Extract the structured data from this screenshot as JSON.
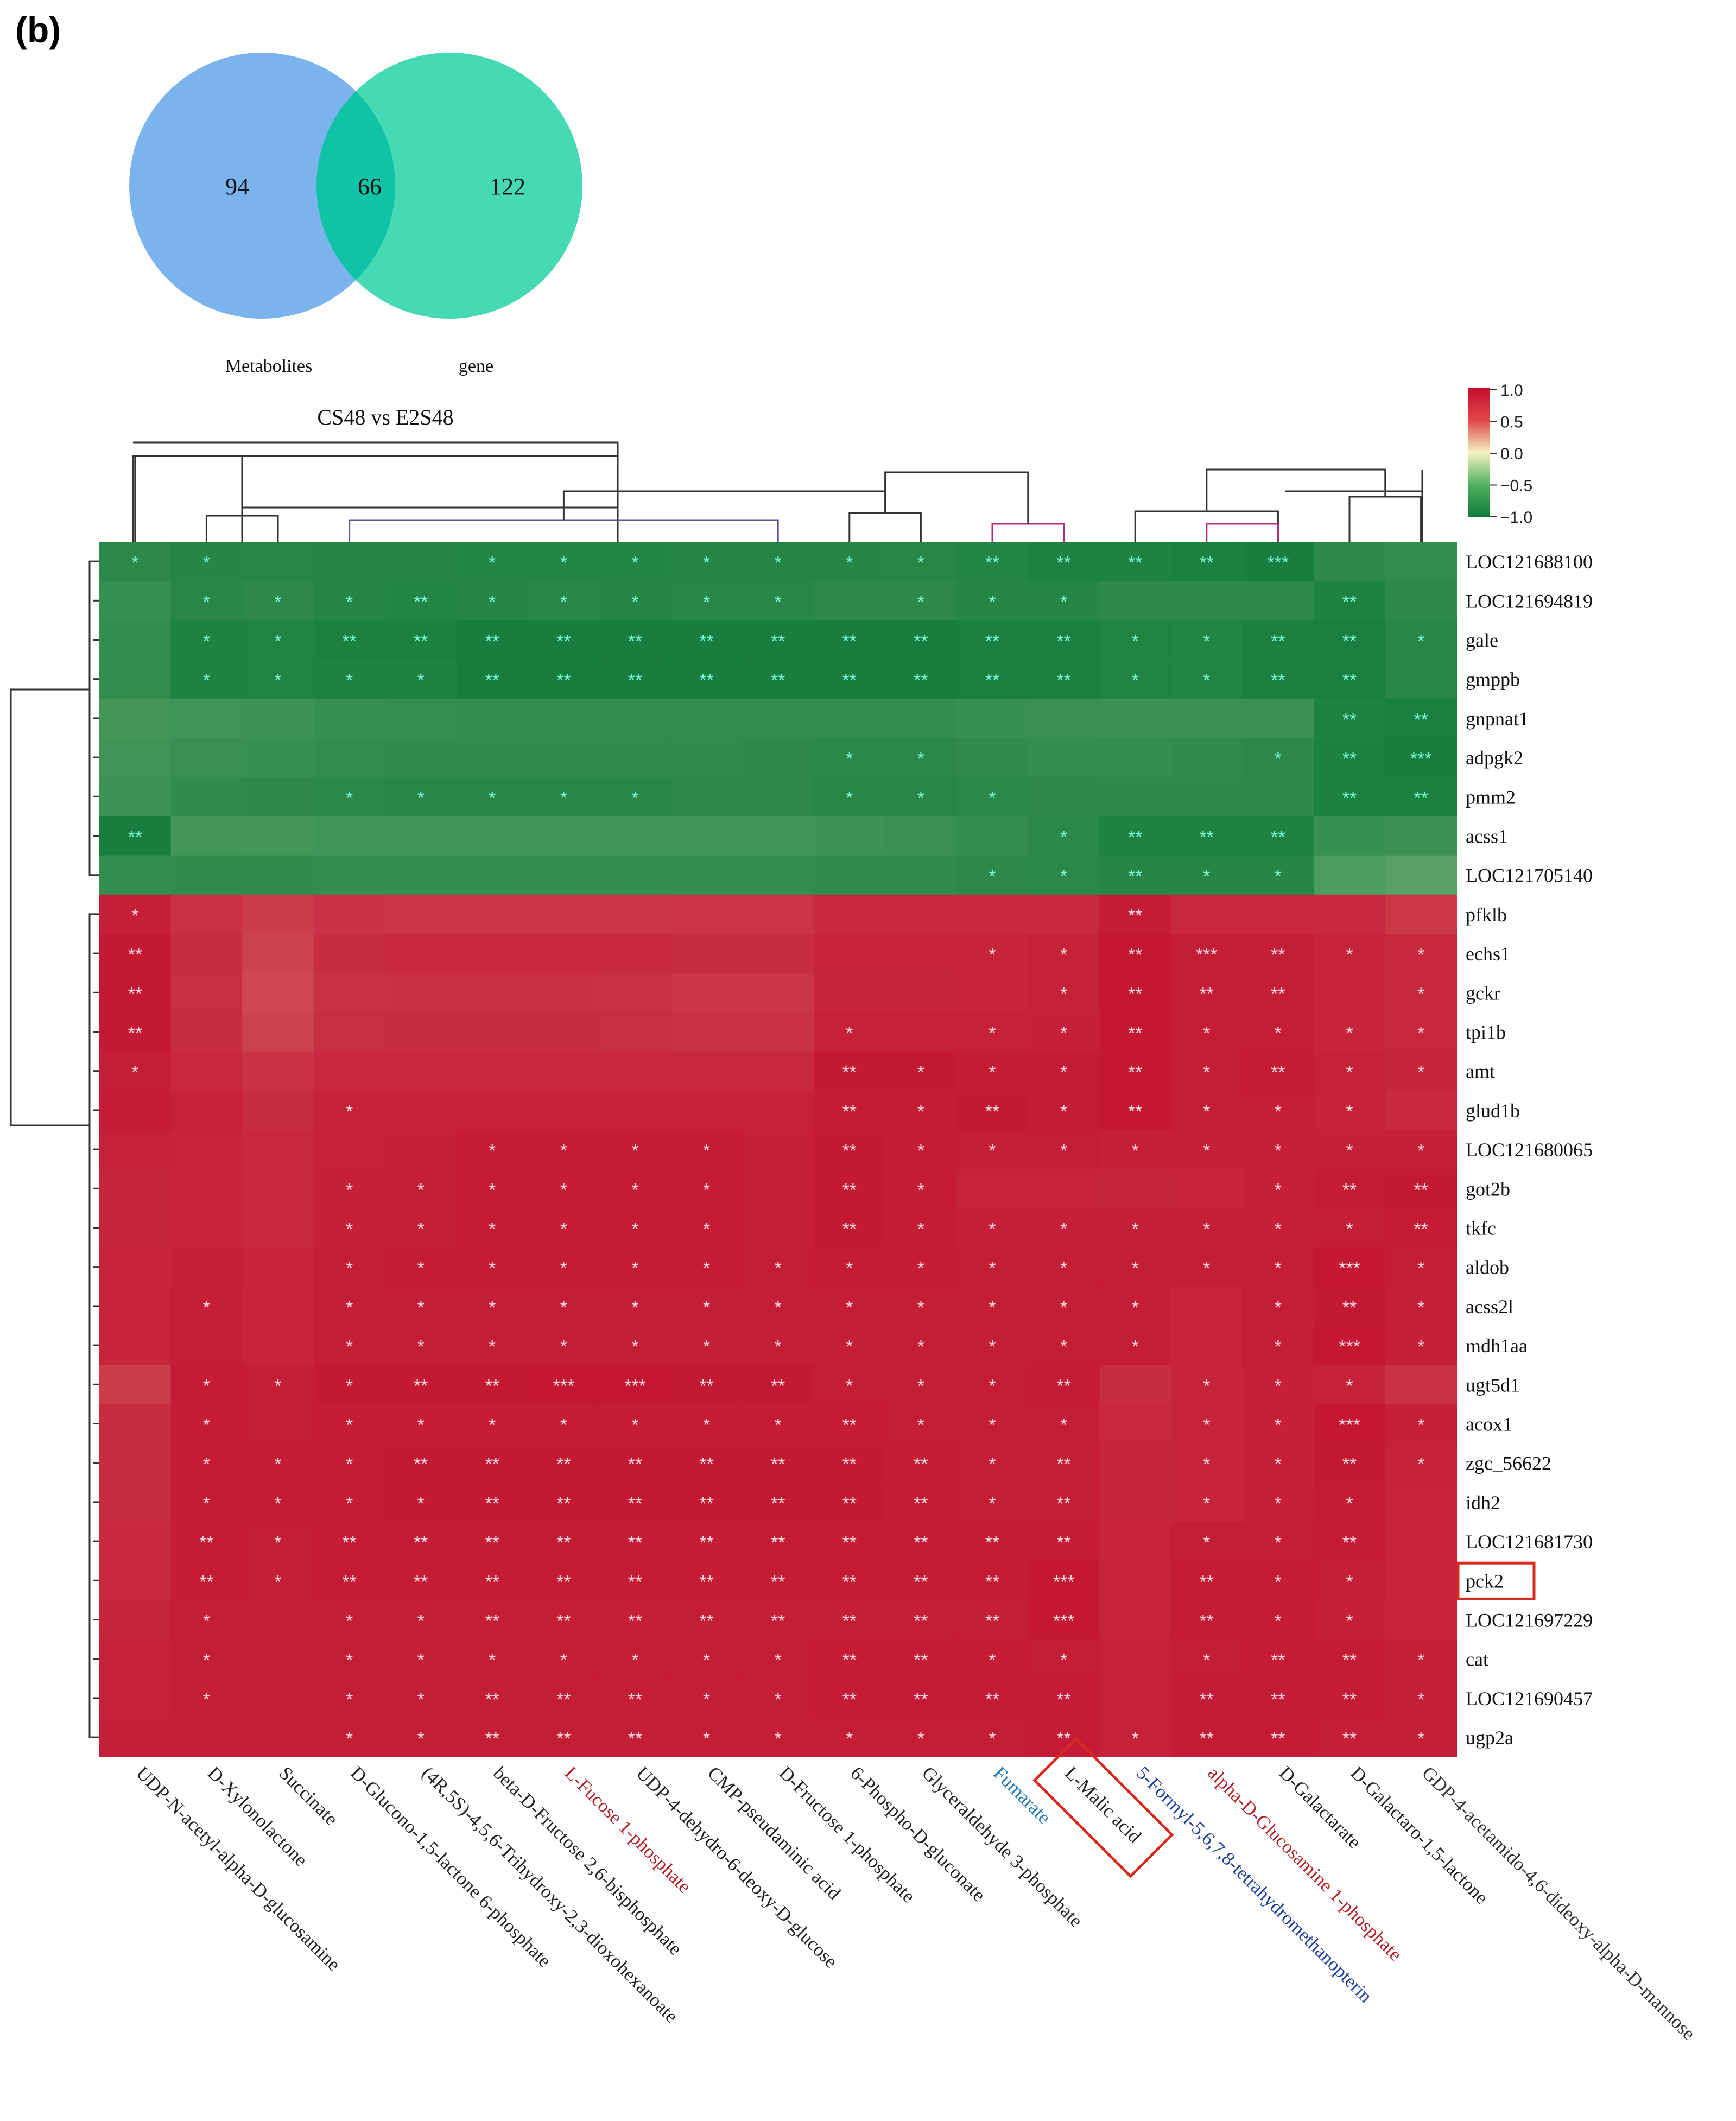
{
  "panel_label": "(b)",
  "venn": {
    "left_label": "Metabolites",
    "right_label": "gene",
    "left_only": "94",
    "overlap": "66",
    "right_only": "122",
    "left_color": "#7bb3ec",
    "right_color": "#45d9b4",
    "overlap_color": "#11c3a6"
  },
  "heatmap": {
    "title": "CS48 vs E2S48",
    "legend": {
      "ticks": [
        "1.0",
        "0.5",
        "0.0",
        "−0.5",
        "−1.0"
      ]
    },
    "highlighted_row": "pck2",
    "highlighted_col": "L-Malic acid"
  },
  "chart_data": {
    "type": "heatmap",
    "title": "CS48 vs E2S48",
    "color_scale": {
      "min": -1.0,
      "max": 1.0,
      "colors": [
        "#0f7a3a",
        "#f6f3c0",
        "#c10f2e"
      ]
    },
    "columns": [
      "UDP-N-acetyl-alpha-D-glucosamine",
      "D-Xylonolactone",
      "Succinate",
      "D-Glucono-1,5-lactone 6-phosphate",
      "(4R,5S)-4,5,6-Trihydroxy-2,3-dioxohexanoate",
      "beta-D-Fructose 2,6-bisphosphate",
      "L-Fucose 1-phosphate",
      "UDP-4-dehydro-6-deoxy-D-glucose",
      "CMP-pseudaminic acid",
      "D-Fructose 1-phosphate",
      "6-Phospho-D-gluconate",
      "Glyceraldehyde 3-phosphate",
      "Fumarate",
      "L-Malic acid",
      "5-Formyl-5,6,7,8-tetrahydromethanopterin",
      "alpha-D-Glucosamine 1-phosphate",
      "D-Galactarate",
      "D-Galactaro-1,5-lactone",
      "GDP-4-acetamido-4,6-dideoxy-alpha-D-mannose"
    ],
    "rows": [
      "LOC121688100",
      "LOC121694819",
      "gale",
      "gmppb",
      "gnpnat1",
      "adpgk2",
      "pmm2",
      "acss1",
      "LOC121705140",
      "pfklb",
      "echs1",
      "gckr",
      "tpi1b",
      "amt",
      "glud1b",
      "LOC121680065",
      "got2b",
      "tkfc",
      "aldob",
      "acss2l",
      "mdh1aa",
      "ugt5d1",
      "acox1",
      "zgc_56622",
      "idh2",
      "LOC121681730",
      "pck2",
      "LOC121697229",
      "cat",
      "LOC121690457",
      "ugp2a"
    ],
    "values": [
      [
        -0.72,
        -0.78,
        -0.76,
        -0.78,
        -0.78,
        -0.82,
        -0.82,
        -0.82,
        -0.8,
        -0.8,
        -0.78,
        -0.76,
        -0.82,
        -0.86,
        -0.86,
        -0.88,
        -0.92,
        -0.7,
        -0.66
      ],
      [
        -0.62,
        -0.76,
        -0.72,
        -0.8,
        -0.82,
        -0.78,
        -0.76,
        -0.8,
        -0.76,
        -0.76,
        -0.72,
        -0.72,
        -0.78,
        -0.78,
        -0.7,
        -0.7,
        -0.7,
        -0.86,
        -0.72
      ],
      [
        -0.66,
        -0.86,
        -0.84,
        -0.88,
        -0.88,
        -0.92,
        -0.92,
        -0.92,
        -0.92,
        -0.92,
        -0.92,
        -0.92,
        -0.9,
        -0.9,
        -0.84,
        -0.82,
        -0.88,
        -0.9,
        -0.76
      ],
      [
        -0.66,
        -0.86,
        -0.84,
        -0.86,
        -0.86,
        -0.92,
        -0.92,
        -0.92,
        -0.92,
        -0.92,
        -0.92,
        -0.92,
        -0.9,
        -0.9,
        -0.84,
        -0.82,
        -0.88,
        -0.9,
        -0.76
      ],
      [
        -0.5,
        -0.52,
        -0.56,
        -0.62,
        -0.64,
        -0.66,
        -0.66,
        -0.66,
        -0.66,
        -0.66,
        -0.66,
        -0.66,
        -0.62,
        -0.6,
        -0.58,
        -0.58,
        -0.58,
        -0.86,
        -0.9
      ],
      [
        -0.54,
        -0.6,
        -0.62,
        -0.66,
        -0.68,
        -0.68,
        -0.68,
        -0.68,
        -0.68,
        -0.7,
        -0.74,
        -0.74,
        -0.68,
        -0.66,
        -0.66,
        -0.68,
        -0.72,
        -0.88,
        -0.92
      ],
      [
        -0.56,
        -0.68,
        -0.7,
        -0.74,
        -0.76,
        -0.76,
        -0.76,
        -0.76,
        -0.72,
        -0.72,
        -0.76,
        -0.76,
        -0.74,
        -0.72,
        -0.7,
        -0.7,
        -0.7,
        -0.88,
        -0.88
      ],
      [
        -0.92,
        -0.5,
        -0.48,
        -0.52,
        -0.52,
        -0.52,
        -0.52,
        -0.52,
        -0.52,
        -0.52,
        -0.56,
        -0.58,
        -0.66,
        -0.74,
        -0.86,
        -0.86,
        -0.86,
        -0.62,
        -0.58
      ],
      [
        -0.66,
        -0.68,
        -0.68,
        -0.66,
        -0.66,
        -0.66,
        -0.66,
        -0.66,
        -0.66,
        -0.66,
        -0.68,
        -0.68,
        -0.72,
        -0.74,
        -0.78,
        -0.78,
        -0.78,
        -0.4,
        -0.3
      ],
      [
        0.84,
        0.66,
        0.55,
        0.65,
        0.62,
        0.62,
        0.62,
        0.62,
        0.64,
        0.64,
        0.74,
        0.74,
        0.74,
        0.74,
        0.88,
        0.76,
        0.76,
        0.74,
        0.6
      ],
      [
        0.9,
        0.72,
        0.5,
        0.72,
        0.74,
        0.74,
        0.74,
        0.74,
        0.72,
        0.72,
        0.8,
        0.8,
        0.8,
        0.82,
        0.92,
        0.86,
        0.86,
        0.8,
        0.76
      ],
      [
        0.9,
        0.7,
        0.45,
        0.66,
        0.68,
        0.68,
        0.68,
        0.66,
        0.62,
        0.62,
        0.78,
        0.78,
        0.8,
        0.82,
        0.92,
        0.86,
        0.86,
        0.8,
        0.76
      ],
      [
        0.9,
        0.72,
        0.5,
        0.7,
        0.72,
        0.72,
        0.72,
        0.7,
        0.66,
        0.66,
        0.82,
        0.82,
        0.82,
        0.84,
        0.92,
        0.86,
        0.86,
        0.8,
        0.76
      ],
      [
        0.86,
        0.76,
        0.65,
        0.76,
        0.76,
        0.76,
        0.76,
        0.76,
        0.76,
        0.76,
        0.9,
        0.9,
        0.88,
        0.88,
        0.92,
        0.86,
        0.88,
        0.82,
        0.78
      ],
      [
        0.88,
        0.82,
        0.72,
        0.82,
        0.82,
        0.82,
        0.82,
        0.82,
        0.82,
        0.82,
        0.88,
        0.88,
        0.9,
        0.88,
        0.92,
        0.86,
        0.86,
        0.82,
        0.74
      ],
      [
        0.82,
        0.8,
        0.76,
        0.82,
        0.84,
        0.88,
        0.88,
        0.88,
        0.88,
        0.84,
        0.9,
        0.88,
        0.86,
        0.86,
        0.84,
        0.84,
        0.84,
        0.84,
        0.84
      ],
      [
        0.78,
        0.8,
        0.76,
        0.84,
        0.86,
        0.88,
        0.88,
        0.88,
        0.88,
        0.84,
        0.9,
        0.88,
        0.8,
        0.8,
        0.78,
        0.8,
        0.84,
        0.88,
        0.9
      ],
      [
        0.78,
        0.8,
        0.76,
        0.84,
        0.86,
        0.88,
        0.88,
        0.88,
        0.88,
        0.84,
        0.9,
        0.88,
        0.84,
        0.84,
        0.84,
        0.84,
        0.84,
        0.86,
        0.88
      ],
      [
        0.8,
        0.84,
        0.8,
        0.86,
        0.88,
        0.88,
        0.88,
        0.88,
        0.88,
        0.86,
        0.88,
        0.88,
        0.86,
        0.86,
        0.86,
        0.86,
        0.86,
        0.92,
        0.86
      ],
      [
        0.8,
        0.86,
        0.8,
        0.86,
        0.86,
        0.86,
        0.86,
        0.86,
        0.86,
        0.86,
        0.86,
        0.86,
        0.86,
        0.86,
        0.86,
        0.8,
        0.86,
        0.9,
        0.84
      ],
      [
        0.8,
        0.86,
        0.8,
        0.86,
        0.86,
        0.86,
        0.86,
        0.86,
        0.86,
        0.86,
        0.86,
        0.86,
        0.86,
        0.86,
        0.86,
        0.8,
        0.86,
        0.92,
        0.84
      ],
      [
        0.55,
        0.88,
        0.86,
        0.9,
        0.9,
        0.9,
        0.92,
        0.92,
        0.9,
        0.9,
        0.86,
        0.86,
        0.86,
        0.88,
        0.72,
        0.8,
        0.84,
        0.82,
        0.66
      ],
      [
        0.72,
        0.88,
        0.86,
        0.88,
        0.88,
        0.88,
        0.88,
        0.88,
        0.88,
        0.88,
        0.88,
        0.86,
        0.86,
        0.86,
        0.76,
        0.8,
        0.84,
        0.92,
        0.84
      ],
      [
        0.72,
        0.88,
        0.88,
        0.88,
        0.9,
        0.9,
        0.9,
        0.9,
        0.9,
        0.9,
        0.9,
        0.88,
        0.86,
        0.86,
        0.78,
        0.8,
        0.84,
        0.9,
        0.82
      ],
      [
        0.72,
        0.88,
        0.88,
        0.88,
        0.9,
        0.9,
        0.9,
        0.9,
        0.9,
        0.9,
        0.9,
        0.88,
        0.86,
        0.86,
        0.78,
        0.8,
        0.84,
        0.88,
        0.8
      ],
      [
        0.74,
        0.88,
        0.86,
        0.88,
        0.88,
        0.88,
        0.88,
        0.88,
        0.88,
        0.88,
        0.88,
        0.88,
        0.88,
        0.88,
        0.8,
        0.86,
        0.86,
        0.88,
        0.8
      ],
      [
        0.74,
        0.88,
        0.86,
        0.88,
        0.88,
        0.88,
        0.88,
        0.88,
        0.88,
        0.88,
        0.88,
        0.88,
        0.88,
        0.92,
        0.8,
        0.88,
        0.88,
        0.86,
        0.8
      ],
      [
        0.78,
        0.86,
        0.84,
        0.86,
        0.86,
        0.86,
        0.86,
        0.86,
        0.86,
        0.86,
        0.86,
        0.86,
        0.86,
        0.92,
        0.8,
        0.88,
        0.88,
        0.84,
        0.8
      ],
      [
        0.82,
        0.86,
        0.84,
        0.86,
        0.86,
        0.86,
        0.86,
        0.86,
        0.86,
        0.86,
        0.88,
        0.88,
        0.88,
        0.86,
        0.82,
        0.86,
        0.88,
        0.88,
        0.84
      ],
      [
        0.82,
        0.86,
        0.84,
        0.86,
        0.86,
        0.86,
        0.86,
        0.86,
        0.86,
        0.86,
        0.88,
        0.88,
        0.88,
        0.88,
        0.82,
        0.88,
        0.88,
        0.88,
        0.84
      ],
      [
        0.84,
        0.84,
        0.84,
        0.86,
        0.86,
        0.86,
        0.86,
        0.86,
        0.86,
        0.86,
        0.86,
        0.86,
        0.86,
        0.88,
        0.82,
        0.88,
        0.88,
        0.86,
        0.84
      ]
    ],
    "significance": [
      [
        "*",
        "*",
        "",
        "",
        "",
        "*",
        "*",
        "*",
        "*",
        "*",
        "*",
        "*",
        "**",
        "**",
        "**",
        "**",
        "***",
        "",
        ""
      ],
      [
        "",
        "*",
        "*",
        "*",
        "**",
        "*",
        "*",
        "*",
        "*",
        "*",
        "",
        "*",
        "*",
        "*",
        "",
        "",
        "",
        "**",
        ""
      ],
      [
        "",
        "*",
        "*",
        "**",
        "**",
        "**",
        "**",
        "**",
        "**",
        "**",
        "**",
        "**",
        "**",
        "**",
        "*",
        "*",
        "**",
        "**",
        "*"
      ],
      [
        "",
        "*",
        "*",
        "*",
        "*",
        "**",
        "**",
        "**",
        "**",
        "**",
        "**",
        "**",
        "**",
        "**",
        "*",
        "*",
        "**",
        "**",
        ""
      ],
      [
        "",
        "",
        "",
        "",
        "",
        "",
        "",
        "",
        "",
        "",
        "",
        "",
        "",
        "",
        "",
        "",
        "",
        "**",
        "**"
      ],
      [
        "",
        "",
        "",
        "",
        "",
        "",
        "",
        "",
        "",
        "",
        "*",
        "*",
        "",
        "",
        "",
        "",
        "*",
        "**",
        "***"
      ],
      [
        "",
        "",
        "",
        "*",
        "*",
        "*",
        "*",
        "*",
        "",
        "",
        "*",
        "*",
        "*",
        "",
        "",
        "",
        "",
        "**",
        "**"
      ],
      [
        "**",
        "",
        "",
        "",
        "",
        "",
        "",
        "",
        "",
        "",
        "",
        "",
        "",
        "*",
        "**",
        "**",
        "**",
        "",
        ""
      ],
      [
        "",
        "",
        "",
        "",
        "",
        "",
        "",
        "",
        "",
        "",
        "",
        "",
        "*",
        "*",
        "**",
        "*",
        "*",
        "",
        ""
      ],
      [
        "*",
        "",
        "",
        "",
        "",
        "",
        "",
        "",
        "",
        "",
        "",
        "",
        "",
        "",
        "**",
        "",
        "",
        "",
        ""
      ],
      [
        "**",
        "",
        "",
        "",
        "",
        "",
        "",
        "",
        "",
        "",
        "",
        "",
        "*",
        "*",
        "**",
        "***",
        "**",
        "*",
        "*"
      ],
      [
        "**",
        "",
        "",
        "",
        "",
        "",
        "",
        "",
        "",
        "",
        "",
        "",
        "",
        "*",
        "**",
        "**",
        "**",
        "",
        "*"
      ],
      [
        "**",
        "",
        "",
        "",
        "",
        "",
        "",
        "",
        "",
        "",
        "*",
        "",
        "*",
        "*",
        "**",
        "*",
        "*",
        "*",
        "*"
      ],
      [
        "*",
        "",
        "",
        "",
        "",
        "",
        "",
        "",
        "",
        "",
        "**",
        "*",
        "*",
        "*",
        "**",
        "*",
        "**",
        "*",
        "*"
      ],
      [
        "",
        "",
        "",
        "*",
        "",
        "",
        "",
        "",
        "",
        "",
        "**",
        "*",
        "**",
        "*",
        "**",
        "*",
        "*",
        "*",
        ""
      ],
      [
        "",
        "",
        "",
        "",
        "",
        "*",
        "*",
        "*",
        "*",
        "",
        "**",
        "*",
        "*",
        "*",
        "*",
        "*",
        "*",
        "*",
        "*"
      ],
      [
        "",
        "",
        "",
        "*",
        "*",
        "*",
        "*",
        "*",
        "*",
        "",
        "**",
        "*",
        "",
        "",
        "",
        "",
        "*",
        "**",
        "**"
      ],
      [
        "",
        "",
        "",
        "*",
        "*",
        "*",
        "*",
        "*",
        "*",
        "",
        "**",
        "*",
        "*",
        "*",
        "*",
        "*",
        "*",
        "*",
        "**"
      ],
      [
        "",
        "",
        "",
        "*",
        "*",
        "*",
        "*",
        "*",
        "*",
        "*",
        "*",
        "*",
        "*",
        "*",
        "*",
        "*",
        "*",
        "***",
        "*"
      ],
      [
        "",
        "*",
        "",
        "*",
        "*",
        "*",
        "*",
        "*",
        "*",
        "*",
        "*",
        "*",
        "*",
        "*",
        "*",
        "",
        "*",
        "**",
        "*"
      ],
      [
        "",
        "",
        "",
        "*",
        "*",
        "*",
        "*",
        "*",
        "*",
        "*",
        "*",
        "*",
        "*",
        "*",
        "*",
        "",
        "*",
        "***",
        "*"
      ],
      [
        "",
        "*",
        "*",
        "*",
        "**",
        "**",
        "***",
        "***",
        "**",
        "**",
        "*",
        "*",
        "*",
        "**",
        "",
        "*",
        "*",
        "*",
        ""
      ],
      [
        "",
        "*",
        "",
        "*",
        "*",
        "*",
        "*",
        "*",
        "*",
        "*",
        "**",
        "*",
        "*",
        "*",
        "",
        "*",
        "*",
        "***",
        "*"
      ],
      [
        "",
        "*",
        "*",
        "*",
        "**",
        "**",
        "**",
        "**",
        "**",
        "**",
        "**",
        "**",
        "*",
        "**",
        "",
        "*",
        "*",
        "**",
        "*"
      ],
      [
        "",
        "*",
        "*",
        "*",
        "*",
        "**",
        "**",
        "**",
        "**",
        "**",
        "**",
        "**",
        "*",
        "**",
        "",
        "*",
        "*",
        "*",
        ""
      ],
      [
        "",
        "**",
        "*",
        "**",
        "**",
        "**",
        "**",
        "**",
        "**",
        "**",
        "**",
        "**",
        "**",
        "**",
        "",
        "*",
        "*",
        "**",
        ""
      ],
      [
        "",
        "**",
        "*",
        "**",
        "**",
        "**",
        "**",
        "**",
        "**",
        "**",
        "**",
        "**",
        "**",
        "***",
        "",
        "**",
        "*",
        "*",
        ""
      ],
      [
        "",
        "*",
        "",
        "*",
        "*",
        "**",
        "**",
        "**",
        "**",
        "**",
        "**",
        "**",
        "**",
        "***",
        "",
        "**",
        "*",
        "*",
        ""
      ],
      [
        "",
        "*",
        "",
        "*",
        "*",
        "*",
        "*",
        "*",
        "*",
        "*",
        "**",
        "**",
        "*",
        "*",
        "",
        "*",
        "**",
        "**",
        "*"
      ],
      [
        "",
        "*",
        "",
        "*",
        "*",
        "**",
        "**",
        "**",
        "*",
        "*",
        "**",
        "**",
        "**",
        "**",
        "",
        "**",
        "**",
        "**",
        "*"
      ],
      [
        "",
        "",
        "",
        "*",
        "*",
        "**",
        "**",
        "**",
        "*",
        "*",
        "*",
        "*",
        "*",
        "**",
        "*",
        "**",
        "**",
        "**",
        "*"
      ]
    ],
    "column_label_colors": {
      "6": "#b0232a",
      "12": "#1f77b4",
      "14": "#1f3f9a",
      "15": "#b0232a",
      "18": "#333333"
    }
  }
}
